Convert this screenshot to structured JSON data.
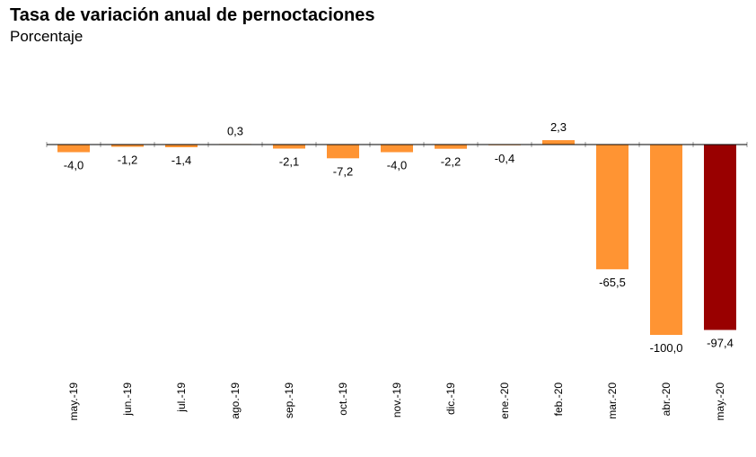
{
  "title": "Tasa de variación anual de pernoctaciones",
  "subtitle": "Porcentaje",
  "colors": {
    "bar": "#FF9433",
    "highlight": "#990000",
    "axis": "#000000",
    "tick": "#999999"
  },
  "chart_data": {
    "type": "bar",
    "title": "Tasa de variación anual de pernoctaciones",
    "subtitle": "Porcentaje",
    "xlabel": "",
    "ylabel": "",
    "grid": false,
    "legend": "none",
    "ylim": [
      -100,
      2.3
    ],
    "categories": [
      "may.-19",
      "jun.-19",
      "jul.-19",
      "ago.-19",
      "sep.-19",
      "oct.-19",
      "nov.-19",
      "dic.-19",
      "ene.-20",
      "feb.-20",
      "mar.-20",
      "abr.-20",
      "may.-20"
    ],
    "values": [
      -4.0,
      -1.2,
      -1.4,
      0.3,
      -2.1,
      -7.2,
      -4.0,
      -2.2,
      -0.4,
      2.3,
      -65.5,
      -100.0,
      -97.4
    ],
    "data_labels": [
      "-4,0",
      "-1,2",
      "-1,4",
      "0,3",
      "-2,1",
      "-7,2",
      "-4,0",
      "-2,2",
      "-0,4",
      "2,3",
      "-65,5",
      "-100,0",
      "-97,4"
    ],
    "highlighted_category": "may.-20"
  }
}
